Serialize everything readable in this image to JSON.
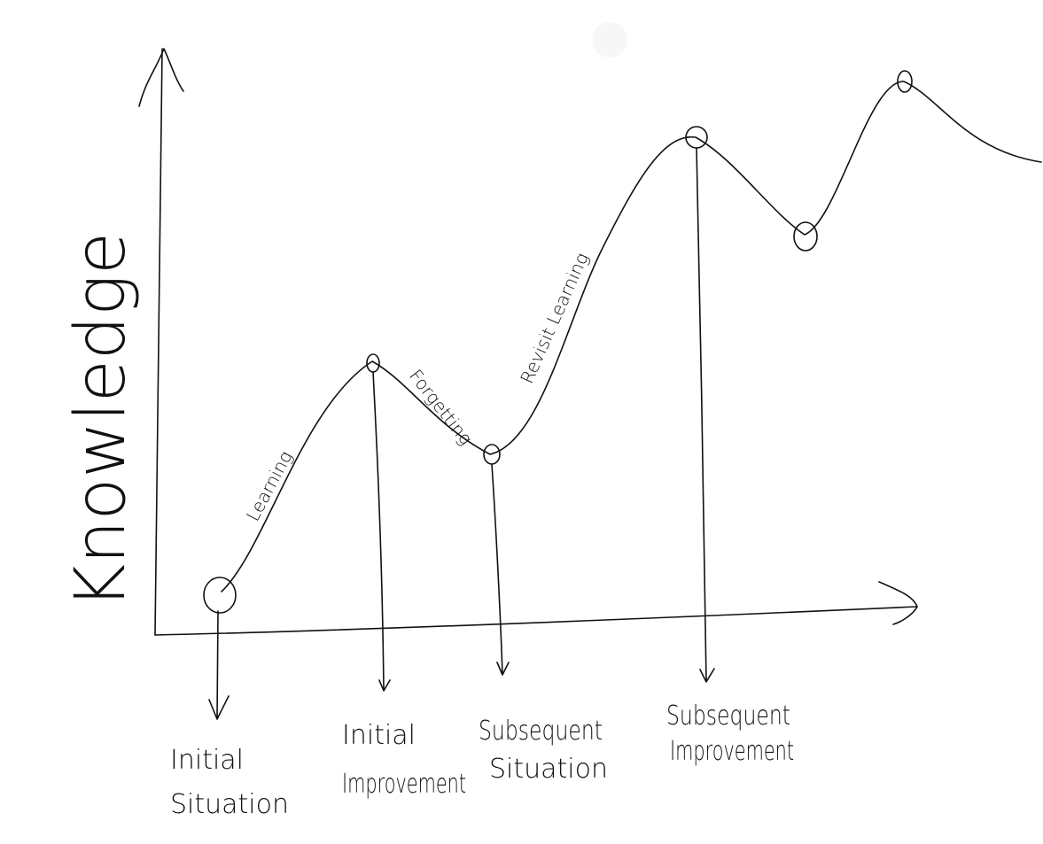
{
  "y_axis_label": "Knowledge",
  "curve_labels": {
    "learning": "Learning",
    "forgetting": "Forgetting",
    "revisit": "Revisit Learning"
  },
  "stages": [
    {
      "lines": [
        "Initial",
        "Situation"
      ]
    },
    {
      "lines": [
        "Initial",
        "Improvement"
      ]
    },
    {
      "lines": [
        "Subsequent",
        "Situation"
      ]
    },
    {
      "lines": [
        "Subsequent",
        "Improvement"
      ]
    }
  ]
}
